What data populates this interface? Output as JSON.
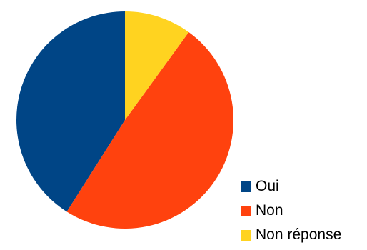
{
  "chart_data": {
    "type": "pie",
    "title": "",
    "slices": [
      {
        "name": "Oui",
        "value": 41,
        "color": "#004586"
      },
      {
        "name": "Non",
        "value": 49,
        "color": "#ff420e"
      },
      {
        "name": "Non réponse",
        "value": 10,
        "color": "#ffd320"
      }
    ],
    "start": "top",
    "direction": "counterclockwise",
    "legend_position": "bottom-right"
  }
}
